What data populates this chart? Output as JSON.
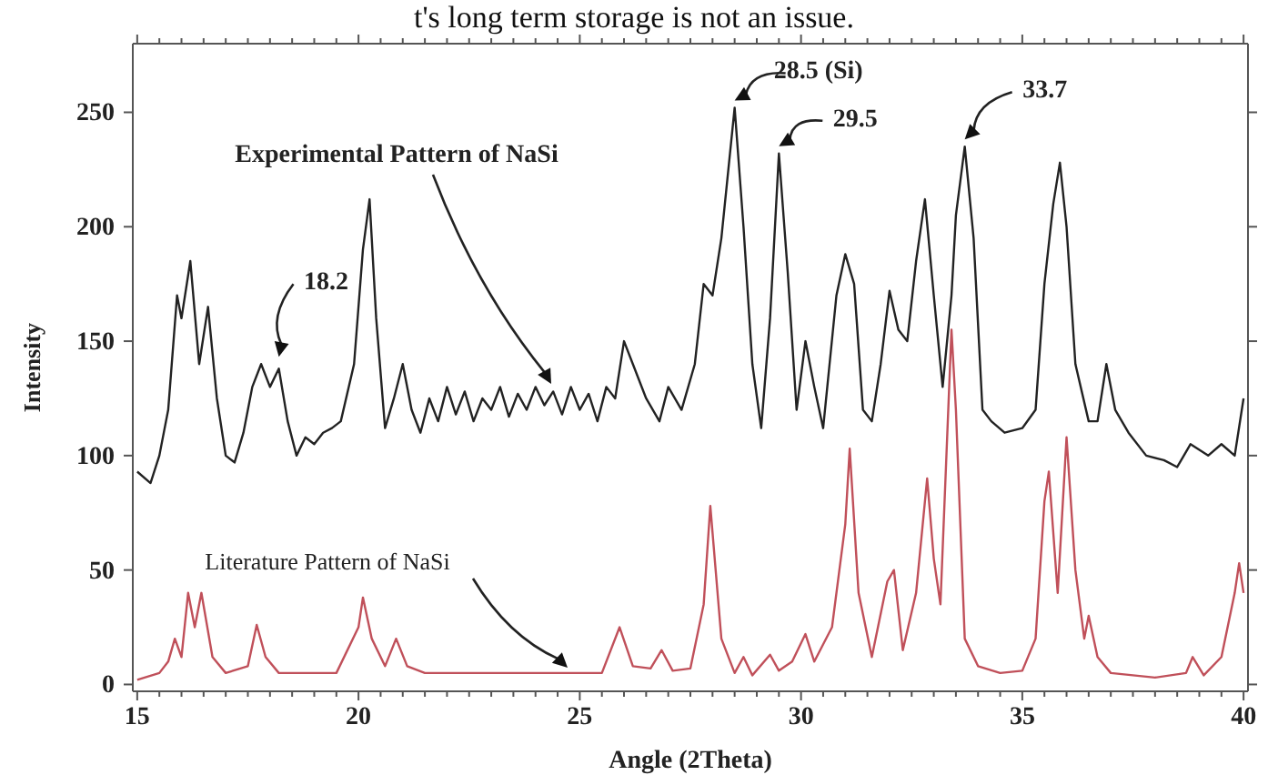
{
  "chart_data": {
    "type": "line",
    "xlabel": "Angle (2Theta)",
    "ylabel": "Intensity",
    "xlim": [
      14.9,
      40.1
    ],
    "ylim": [
      -3,
      280
    ],
    "xticks": [
      15,
      {
        "value": 15.5,
        "label": null
      },
      {
        "value": 16,
        "label": null
      },
      {
        "value": 16.5,
        "label": null
      },
      {
        "value": 17,
        "label": null
      },
      {
        "value": 17.5,
        "label": null
      },
      {
        "value": 18,
        "label": null
      },
      {
        "value": 18.5,
        "label": null
      },
      {
        "value": 19,
        "label": null
      },
      {
        "value": 19.5,
        "label": null
      },
      20,
      {
        "value": 20.5,
        "label": null
      },
      {
        "value": 21,
        "label": null
      },
      {
        "value": 21.5,
        "label": null
      },
      {
        "value": 22,
        "label": null
      },
      {
        "value": 22.5,
        "label": null
      },
      {
        "value": 23,
        "label": null
      },
      {
        "value": 23.5,
        "label": null
      },
      {
        "value": 24,
        "label": null
      },
      {
        "value": 24.5,
        "label": null
      },
      25,
      {
        "value": 25.5,
        "label": null
      },
      {
        "value": 26,
        "label": null
      },
      {
        "value": 26.5,
        "label": null
      },
      {
        "value": 27,
        "label": null
      },
      {
        "value": 27.5,
        "label": null
      },
      {
        "value": 28,
        "label": null
      },
      {
        "value": 28.5,
        "label": null
      },
      {
        "value": 29,
        "label": null
      },
      {
        "value": 29.5,
        "label": null
      },
      30,
      {
        "value": 30.5,
        "label": null
      },
      {
        "value": 31,
        "label": null
      },
      {
        "value": 31.5,
        "label": null
      },
      {
        "value": 32,
        "label": null
      },
      {
        "value": 32.5,
        "label": null
      },
      {
        "value": 33,
        "label": null
      },
      {
        "value": 33.5,
        "label": null
      },
      {
        "value": 34,
        "label": null
      },
      {
        "value": 34.5,
        "label": null
      },
      35,
      {
        "value": 35.5,
        "label": null
      },
      {
        "value": 36,
        "label": null
      },
      {
        "value": 36.5,
        "label": null
      },
      {
        "value": 37,
        "label": null
      },
      {
        "value": 37.5,
        "label": null
      },
      {
        "value": 38,
        "label": null
      },
      {
        "value": 38.5,
        "label": null
      },
      {
        "value": 39,
        "label": null
      },
      {
        "value": 39.5,
        "label": null
      },
      40
    ],
    "yticks": [
      0,
      50,
      100,
      150,
      200,
      250
    ],
    "grid": false,
    "marker": "none",
    "line_style": "solid",
    "series": [
      {
        "color": "#222222",
        "x": [
          15.0,
          15.3,
          15.5,
          15.7,
          15.9,
          16.0,
          16.2,
          16.4,
          16.6,
          16.8,
          17.0,
          17.2,
          17.4,
          17.6,
          17.8,
          18.0,
          18.2,
          18.4,
          18.6,
          18.8,
          19.0,
          19.2,
          19.4,
          19.6,
          19.9,
          20.1,
          20.25,
          20.4,
          20.6,
          20.8,
          21.0,
          21.2,
          21.4,
          21.6,
          21.8,
          22.0,
          22.2,
          22.4,
          22.6,
          22.8,
          23.0,
          23.2,
          23.4,
          23.6,
          23.8,
          24.0,
          24.2,
          24.4,
          24.6,
          24.8,
          25.0,
          25.2,
          25.4,
          25.6,
          25.8,
          26.0,
          26.2,
          26.5,
          26.8,
          27.0,
          27.3,
          27.6,
          27.8,
          28.0,
          28.2,
          28.5,
          28.7,
          28.9,
          29.1,
          29.3,
          29.5,
          29.7,
          29.9,
          30.1,
          30.3,
          30.5,
          30.8,
          31.0,
          31.2,
          31.4,
          31.6,
          31.8,
          32.0,
          32.2,
          32.4,
          32.6,
          32.8,
          33.0,
          33.2,
          33.4,
          33.5,
          33.7,
          33.9,
          34.1,
          34.3,
          34.6,
          35.0,
          35.3,
          35.5,
          35.7,
          35.85,
          36.0,
          36.2,
          36.5,
          36.7,
          36.9,
          37.1,
          37.4,
          37.8,
          38.2,
          38.5,
          38.8,
          39.2,
          39.5,
          39.8,
          40.0
        ],
        "values": [
          93,
          88,
          100,
          120,
          170,
          160,
          185,
          140,
          165,
          125,
          100,
          97,
          110,
          130,
          140,
          130,
          138,
          115,
          100,
          108,
          105,
          110,
          112,
          115,
          140,
          190,
          212,
          160,
          112,
          125,
          140,
          120,
          110,
          125,
          115,
          130,
          118,
          128,
          115,
          125,
          120,
          130,
          117,
          127,
          120,
          130,
          122,
          128,
          118,
          130,
          120,
          127,
          115,
          130,
          125,
          150,
          140,
          125,
          115,
          130,
          120,
          140,
          175,
          170,
          195,
          252,
          200,
          140,
          112,
          160,
          232,
          180,
          120,
          150,
          130,
          112,
          170,
          188,
          175,
          120,
          115,
          140,
          172,
          155,
          150,
          185,
          212,
          170,
          130,
          170,
          205,
          235,
          195,
          120,
          115,
          110,
          112,
          120,
          175,
          210,
          228,
          200,
          140,
          115,
          115,
          140,
          120,
          110,
          100,
          98,
          95,
          105,
          100,
          105,
          100,
          125
        ]
      },
      {
        "color": "#c0505a",
        "x": [
          15.0,
          15.5,
          15.7,
          15.85,
          16.0,
          16.15,
          16.3,
          16.45,
          16.7,
          17.0,
          17.5,
          17.7,
          17.9,
          18.2,
          19.5,
          20.0,
          20.1,
          20.3,
          20.6,
          20.85,
          21.1,
          21.5,
          25.5,
          25.9,
          26.2,
          26.6,
          26.85,
          27.1,
          27.5,
          27.8,
          27.95,
          28.2,
          28.5,
          28.7,
          28.9,
          29.3,
          29.5,
          29.8,
          30.1,
          30.3,
          30.7,
          31.0,
          31.1,
          31.3,
          31.6,
          31.95,
          32.1,
          32.3,
          32.6,
          32.85,
          33.0,
          33.15,
          33.4,
          33.5,
          33.7,
          34.0,
          34.5,
          35.0,
          35.3,
          35.5,
          35.6,
          35.8,
          36.0,
          36.2,
          36.4,
          36.5,
          36.7,
          37.0,
          38.0,
          38.7,
          38.85,
          39.1,
          39.5,
          39.8,
          39.9,
          40.0
        ],
        "values": [
          2,
          5,
          10,
          20,
          12,
          40,
          25,
          40,
          12,
          5,
          8,
          26,
          12,
          5,
          5,
          25,
          38,
          20,
          8,
          20,
          8,
          5,
          5,
          25,
          8,
          7,
          15,
          6,
          7,
          35,
          78,
          20,
          5,
          12,
          4,
          13,
          6,
          10,
          22,
          10,
          25,
          70,
          103,
          40,
          12,
          45,
          50,
          15,
          40,
          90,
          55,
          35,
          155,
          120,
          20,
          8,
          5,
          6,
          20,
          80,
          93,
          40,
          108,
          50,
          20,
          30,
          12,
          5,
          3,
          5,
          12,
          4,
          12,
          40,
          53,
          40
        ]
      }
    ],
    "annotations": [
      "t's long term storage is not an issue.",
      "Experimental Pattern of NaSi",
      {
        "text": "18.2",
        "x": 18.2,
        "y": 140
      },
      {
        "text": "28.5 (Si)",
        "x": 28.5,
        "y": 252
      },
      {
        "text": "29.5",
        "x": 29.5,
        "y": 232
      },
      {
        "text": "33.7",
        "x": 33.7,
        "y": 235
      },
      "Literature Pattern of NaSi"
    ]
  }
}
